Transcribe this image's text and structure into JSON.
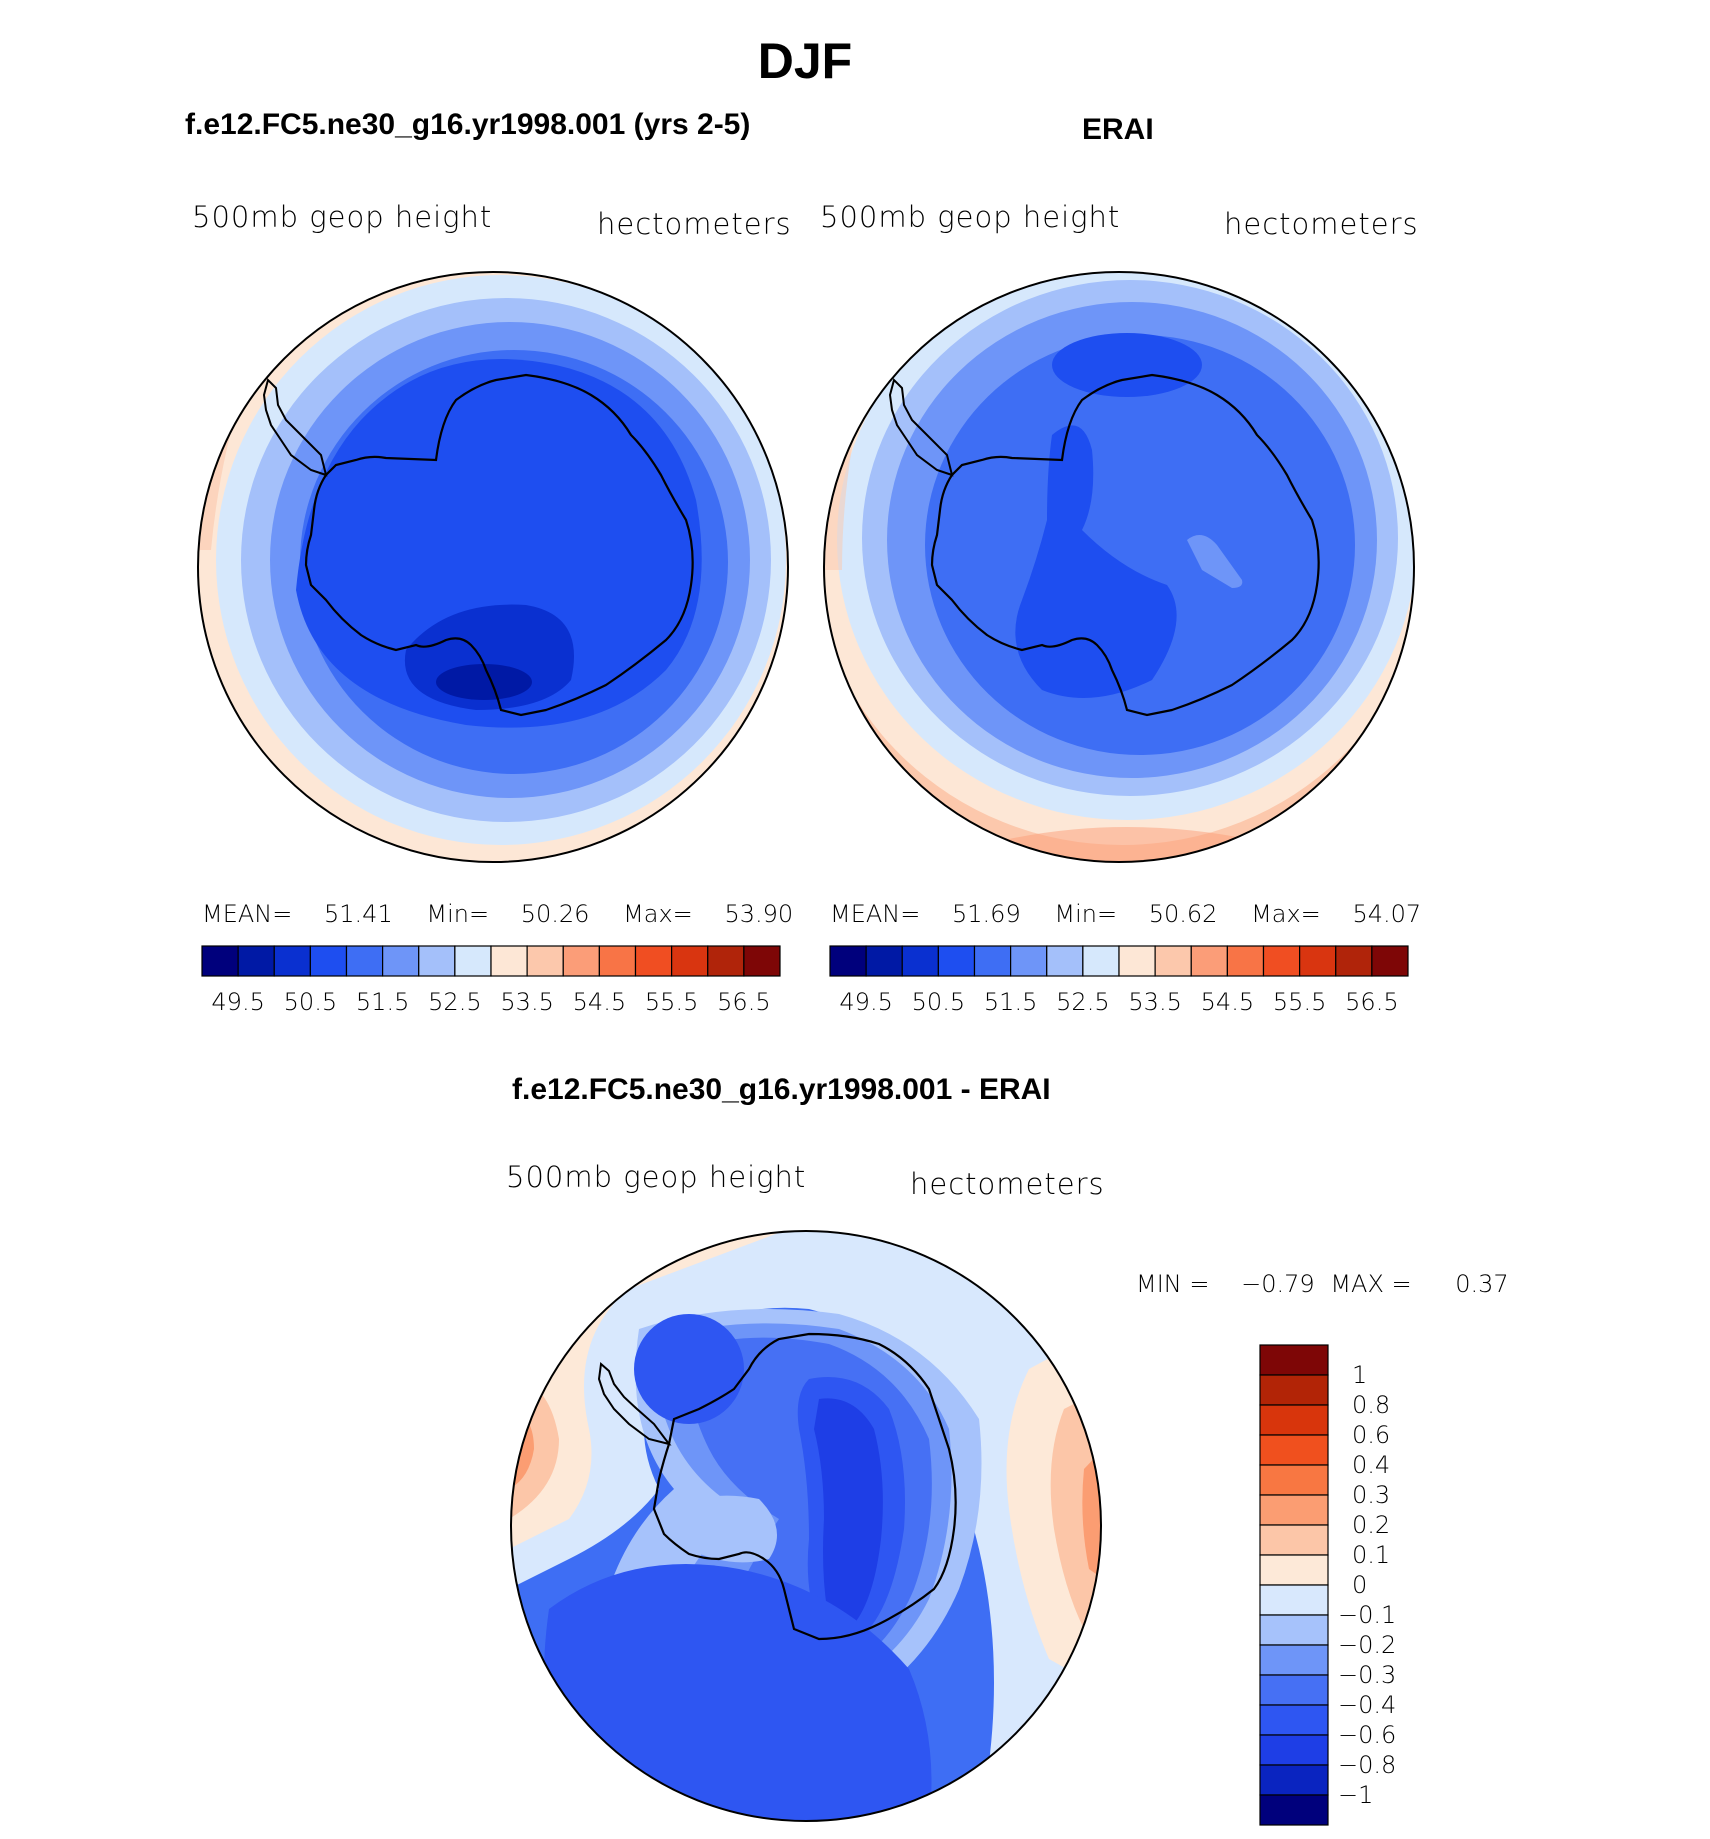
{
  "figure": {
    "title": "DJF"
  },
  "panels": [
    {
      "id": "model",
      "heading": "f.e12.FC5.ne30_g16.yr1998.001 (yrs 2-5)",
      "field_label": "500mb geop height",
      "units": "hectometers",
      "stats": {
        "mean_label": "MEAN=",
        "mean": "51.41",
        "min_label": "Min=",
        "min": "50.26",
        "max_label": "Max=",
        "max": "53.90"
      }
    },
    {
      "id": "obs",
      "heading": "ERAI",
      "field_label": "500mb geop height",
      "units": "hectometers",
      "stats": {
        "mean_label": "MEAN=",
        "mean": "51.69",
        "min_label": "Min=",
        "min": "50.62",
        "max_label": "Max=",
        "max": "54.07"
      }
    },
    {
      "id": "diff",
      "heading": "f.e12.FC5.ne30_g16.yr1998.001 - ERAI",
      "field_label": "500mb geop height",
      "units": "hectometers",
      "stats": {
        "min_label": "MIN =",
        "min": "−0.79",
        "max_label": "MAX =",
        "max": "0.37"
      }
    }
  ],
  "abs_colorbar": {
    "colors": [
      "#00007c",
      "#0019a5",
      "#0a30d0",
      "#1e4ef0",
      "#3e6ef4",
      "#6e95f8",
      "#a4c0fa",
      "#d6e8fc",
      "#fde7d6",
      "#fcc8ac",
      "#fb9d78",
      "#f87446",
      "#f04e22",
      "#d93510",
      "#b0240a",
      "#7e0606"
    ],
    "ticks": [
      "49.5",
      "50.5",
      "51.5",
      "52.5",
      "53.5",
      "54.5",
      "55.5",
      "56.5"
    ]
  },
  "diff_colorbar": {
    "colors": [
      "#00007c",
      "#0a24c0",
      "#1e3ee6",
      "#2e56f2",
      "#4670f4",
      "#6e95f8",
      "#a6c2fb",
      "#d8e8fd",
      "#fde9d8",
      "#fcc6a8",
      "#fb9d72",
      "#f87742",
      "#f0501e",
      "#d8350c",
      "#b22406",
      "#7e0606"
    ],
    "ticks": [
      "1",
      "0.8",
      "0.6",
      "0.4",
      "0.3",
      "0.2",
      "0.1",
      "0",
      "−0.1",
      "−0.2",
      "−0.3",
      "−0.4",
      "−0.6",
      "−0.8",
      "−1"
    ]
  }
}
